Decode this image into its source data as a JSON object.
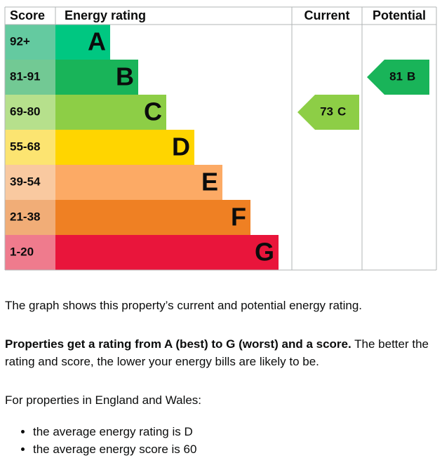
{
  "header": {
    "score": "Score",
    "rating": "Energy rating",
    "current": "Current",
    "potential": "Potential"
  },
  "bands": [
    {
      "score": "92+",
      "letter": "A",
      "color": "#00c781",
      "score_color": "#64caa0"
    },
    {
      "score": "81-91",
      "letter": "B",
      "color": "#19b459",
      "score_color": "#72c994"
    },
    {
      "score": "69-80",
      "letter": "C",
      "color": "#8dce46",
      "score_color": "#b6e08c"
    },
    {
      "score": "55-68",
      "letter": "D",
      "color": "#ffd500",
      "score_color": "#fce471"
    },
    {
      "score": "39-54",
      "letter": "E",
      "color": "#fcaa65",
      "score_color": "#f9c9a0"
    },
    {
      "score": "21-38",
      "letter": "F",
      "color": "#ef8023",
      "score_color": "#f1ad77"
    },
    {
      "score": "1-20",
      "letter": "G",
      "color": "#e9153b",
      "score_color": "#ef7b8d"
    }
  ],
  "current": {
    "score": 73,
    "letter": "C"
  },
  "potential": {
    "score": 81,
    "letter": "B"
  },
  "text": {
    "intro": "The graph shows this property’s current and potential energy rating.",
    "bold": "Properties get a rating from A (best) to G (worst) and a score.",
    "rest": "The better the rating and score, the lower your energy bills are likely to be.",
    "region": "For properties in England and Wales:",
    "bullets": [
      "the average energy rating is D",
      "the average energy score is 60"
    ]
  }
}
